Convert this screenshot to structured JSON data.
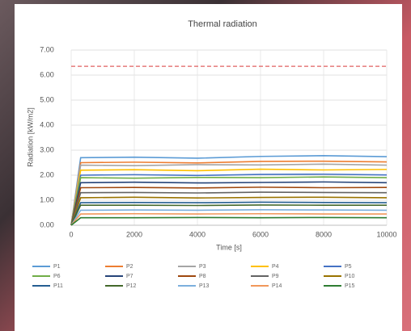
{
  "chart_data": {
    "type": "line",
    "title": "Thermal radiation",
    "x_label": "Time [s]",
    "y_label": "Radiation [kW/m2]",
    "x": [
      0,
      300,
      2000,
      4000,
      6000,
      8000,
      10000
    ],
    "xlim": [
      0,
      10000
    ],
    "xticks": [
      0,
      2000,
      4000,
      6000,
      8000,
      10000
    ],
    "ylim": [
      0,
      7
    ],
    "yticks": [
      {
        "value": 0,
        "label": "0.00"
      },
      {
        "value": 1,
        "label": "1.00"
      },
      {
        "value": 2,
        "label": "2.00"
      },
      {
        "value": 3,
        "label": "3.00"
      },
      {
        "value": 4,
        "label": "4.00"
      },
      {
        "value": 5,
        "label": "5.00"
      },
      {
        "value": 6,
        "label": "6.00"
      },
      {
        "value": 7,
        "label": "7.00"
      }
    ],
    "grid": true,
    "threshold": {
      "value": 6.35,
      "color": "#e06060"
    },
    "series": [
      {
        "name": "P1",
        "color": "#5b9bd5",
        "values": [
          0,
          2.7,
          2.72,
          2.68,
          2.75,
          2.78,
          2.74
        ]
      },
      {
        "name": "P2",
        "color": "#ed7d31",
        "values": [
          0,
          2.5,
          2.52,
          2.49,
          2.55,
          2.56,
          2.53
        ]
      },
      {
        "name": "P3",
        "color": "#a5a5a5",
        "values": [
          0,
          2.4,
          2.38,
          2.42,
          2.41,
          2.44,
          2.4
        ]
      },
      {
        "name": "P4",
        "color": "#ffc000",
        "values": [
          0,
          2.2,
          2.22,
          2.18,
          2.24,
          2.21,
          2.23
        ]
      },
      {
        "name": "P5",
        "color": "#4472c4",
        "values": [
          0,
          2.0,
          2.02,
          1.99,
          2.03,
          2.04,
          2.01
        ]
      },
      {
        "name": "P6",
        "color": "#70ad47",
        "values": [
          0,
          1.9,
          1.88,
          1.91,
          1.9,
          1.93,
          1.9
        ]
      },
      {
        "name": "P7",
        "color": "#264478",
        "values": [
          0,
          1.7,
          1.72,
          1.69,
          1.71,
          1.73,
          1.7
        ]
      },
      {
        "name": "P8",
        "color": "#9e480e",
        "values": [
          0,
          1.5,
          1.51,
          1.49,
          1.52,
          1.5,
          1.51
        ]
      },
      {
        "name": "P9",
        "color": "#636363",
        "values": [
          0,
          1.3,
          1.31,
          1.29,
          1.32,
          1.31,
          1.3
        ]
      },
      {
        "name": "P10",
        "color": "#997300",
        "values": [
          0,
          1.1,
          1.12,
          1.09,
          1.11,
          1.12,
          1.1
        ]
      },
      {
        "name": "P11",
        "color": "#255e91",
        "values": [
          0,
          0.9,
          0.91,
          0.9,
          0.92,
          0.91,
          0.9
        ]
      },
      {
        "name": "P12",
        "color": "#43682b",
        "values": [
          0,
          0.8,
          0.8,
          0.79,
          0.81,
          0.8,
          0.8
        ]
      },
      {
        "name": "P13",
        "color": "#7cafdd",
        "values": [
          0,
          0.6,
          0.61,
          0.6,
          0.62,
          0.61,
          0.6
        ]
      },
      {
        "name": "P14",
        "color": "#f1975a",
        "values": [
          0,
          0.45,
          0.46,
          0.45,
          0.46,
          0.45,
          0.45
        ]
      },
      {
        "name": "P15",
        "color": "#2e7d32",
        "values": [
          0,
          0.3,
          0.3,
          0.31,
          0.3,
          0.31,
          0.3
        ]
      }
    ]
  }
}
